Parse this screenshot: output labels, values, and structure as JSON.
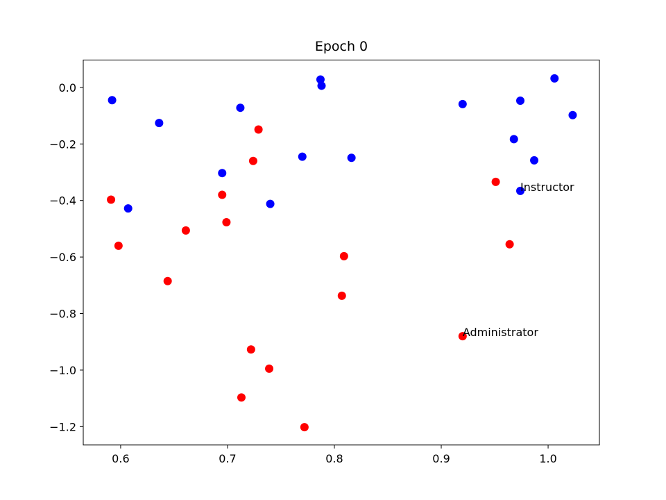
{
  "chart_data": {
    "type": "scatter",
    "title": "Epoch 0",
    "xlabel": "",
    "ylabel": "",
    "xlim": [
      0.565,
      1.048
    ],
    "ylim": [
      -1.265,
      0.097
    ],
    "xticks": [
      0.6,
      0.7,
      0.8,
      0.9,
      1.0
    ],
    "xtick_labels": [
      "0.6",
      "0.7",
      "0.8",
      "0.9",
      "1.0"
    ],
    "yticks": [
      0.0,
      -0.2,
      -0.4,
      -0.6,
      -0.8,
      -1.0,
      -1.2
    ],
    "ytick_labels": [
      "0.0",
      "−0.2",
      "−0.4",
      "−0.6",
      "−0.8",
      "−1.0",
      "−1.2"
    ],
    "grid": false,
    "series": [
      {
        "color": "#0000ff",
        "points": [
          {
            "x": 0.592,
            "y": -0.045
          },
          {
            "x": 0.636,
            "y": -0.126
          },
          {
            "x": 0.607,
            "y": -0.428
          },
          {
            "x": 0.695,
            "y": -0.303
          },
          {
            "x": 0.712,
            "y": -0.072
          },
          {
            "x": 0.74,
            "y": -0.412
          },
          {
            "x": 0.77,
            "y": -0.245
          },
          {
            "x": 0.787,
            "y": 0.028
          },
          {
            "x": 0.788,
            "y": 0.006
          },
          {
            "x": 0.816,
            "y": -0.249
          },
          {
            "x": 0.92,
            "y": -0.059
          },
          {
            "x": 0.968,
            "y": -0.183
          },
          {
            "x": 0.974,
            "y": -0.047
          },
          {
            "x": 0.987,
            "y": -0.258
          },
          {
            "x": 1.006,
            "y": 0.032
          },
          {
            "x": 1.023,
            "y": -0.098
          },
          {
            "x": 0.974,
            "y": -0.366
          }
        ]
      },
      {
        "color": "#ff0000",
        "points": [
          {
            "x": 0.591,
            "y": -0.397
          },
          {
            "x": 0.598,
            "y": -0.56
          },
          {
            "x": 0.644,
            "y": -0.685
          },
          {
            "x": 0.661,
            "y": -0.506
          },
          {
            "x": 0.695,
            "y": -0.38
          },
          {
            "x": 0.699,
            "y": -0.477
          },
          {
            "x": 0.722,
            "y": -0.927
          },
          {
            "x": 0.724,
            "y": -0.26
          },
          {
            "x": 0.729,
            "y": -0.149
          },
          {
            "x": 0.713,
            "y": -1.097
          },
          {
            "x": 0.739,
            "y": -0.995
          },
          {
            "x": 0.772,
            "y": -1.202
          },
          {
            "x": 0.807,
            "y": -0.737
          },
          {
            "x": 0.809,
            "y": -0.597
          },
          {
            "x": 0.92,
            "y": -0.88
          },
          {
            "x": 0.951,
            "y": -0.334
          },
          {
            "x": 0.964,
            "y": -0.555
          }
        ]
      }
    ],
    "annotations": [
      {
        "text": "Instructor",
        "x": 0.974,
        "y": -0.366
      },
      {
        "text": "Administrator",
        "x": 0.92,
        "y": -0.88
      }
    ]
  }
}
